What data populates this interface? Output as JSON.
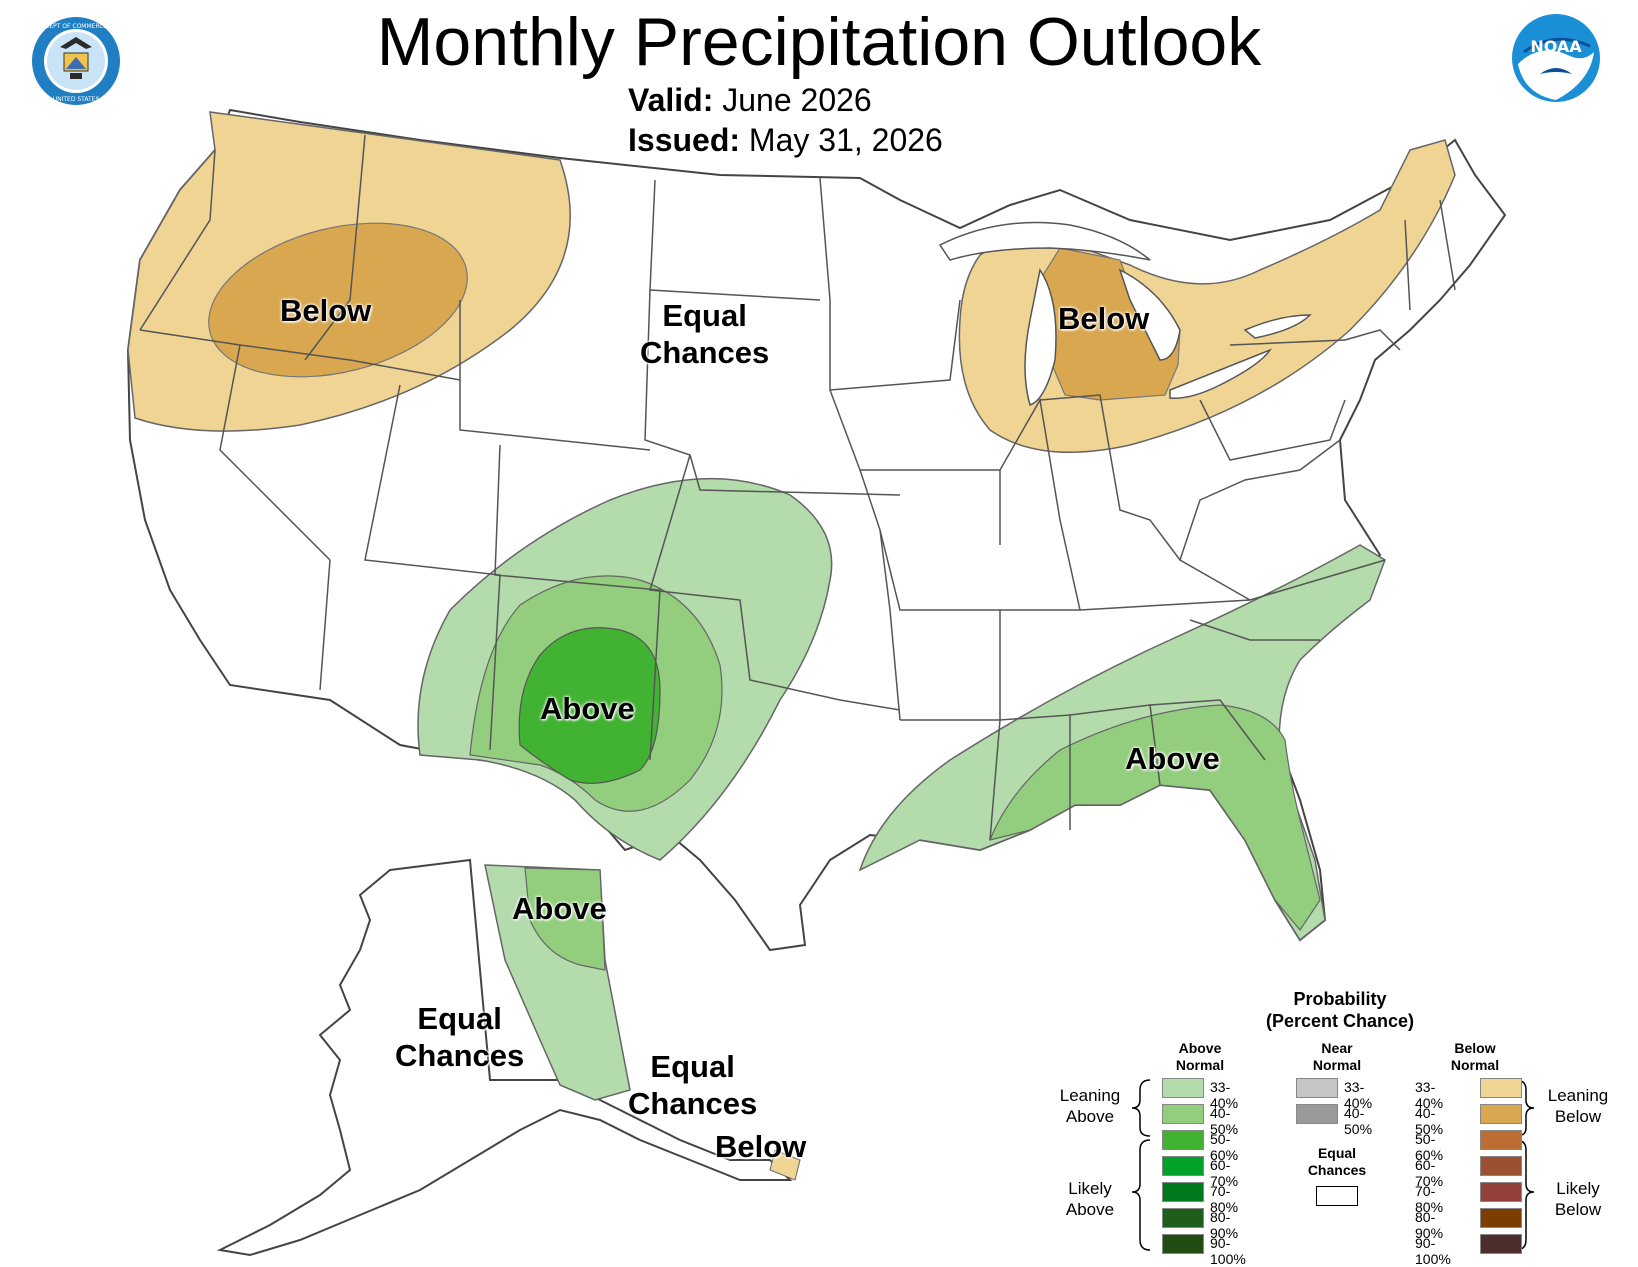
{
  "header": {
    "title": "Monthly Precipitation Outlook",
    "valid_label": "Valid:",
    "valid_value": "June 2026",
    "issued_label": "Issued:",
    "issued_value": "May 31, 2026"
  },
  "logos": {
    "left": "DEPARTMENT OF COMMERCE · UNITED STATES OF AMERICA",
    "right": "NOAA"
  },
  "map_labels": {
    "northwest": "Below",
    "great_lakes": "Below",
    "plains_line1": "Equal",
    "plains_line2": "Chances",
    "southwest": "Above",
    "southeast": "Above",
    "alaska_east": "Above",
    "alaska_w_line1": "Equal",
    "alaska_w_line2": "Chances",
    "alaska_s_line1": "Equal",
    "alaska_s_line2": "Chances",
    "alaska_panhandle": "Below"
  },
  "legend": {
    "title_line1": "Probability",
    "title_line2": "(Percent Chance)",
    "above_header_1": "Above",
    "above_header_2": "Normal",
    "near_header_1": "Near",
    "near_header_2": "Normal",
    "below_header_1": "Below",
    "below_header_2": "Normal",
    "leaning_above_1": "Leaning",
    "leaning_above_2": "Above",
    "likely_above_1": "Likely",
    "likely_above_2": "Above",
    "leaning_below_1": "Leaning",
    "leaning_below_2": "Below",
    "likely_below_1": "Likely",
    "likely_below_2": "Below",
    "equal_1": "Equal",
    "equal_2": "Chances",
    "above": [
      {
        "label": "33-40%",
        "color": "#b3dbab"
      },
      {
        "label": "40-50%",
        "color": "#93ce7e"
      },
      {
        "label": "50-60%",
        "color": "#42b233"
      },
      {
        "label": "60-70%",
        "color": "#00a22a"
      },
      {
        "label": "70-80%",
        "color": "#00781c"
      },
      {
        "label": "80-90%",
        "color": "#1d5e1b"
      },
      {
        "label": "90-100%",
        "color": "#214d13"
      }
    ],
    "near": [
      {
        "label": "33-40%",
        "color": "#c6c6c6"
      },
      {
        "label": "40-50%",
        "color": "#999999"
      }
    ],
    "below": [
      {
        "label": "33-40%",
        "color": "#f0d493"
      },
      {
        "label": "40-50%",
        "color": "#d8a750"
      },
      {
        "label": "50-60%",
        "color": "#bb6d33"
      },
      {
        "label": "60-70%",
        "color": "#9b5031"
      },
      {
        "label": "70-80%",
        "color": "#93403a"
      },
      {
        "label": "80-90%",
        "color": "#7c3d03"
      },
      {
        "label": "90-100%",
        "color": "#4e2d2d"
      }
    ],
    "equal_color": "#ffffff"
  },
  "map_colors": {
    "below_33_40": "#f0d493",
    "below_40_50": "#d8a750",
    "above_33_40": "#b3dbab",
    "above_40_50": "#93ce7e",
    "above_50_60": "#42b233",
    "border": "#555555"
  }
}
